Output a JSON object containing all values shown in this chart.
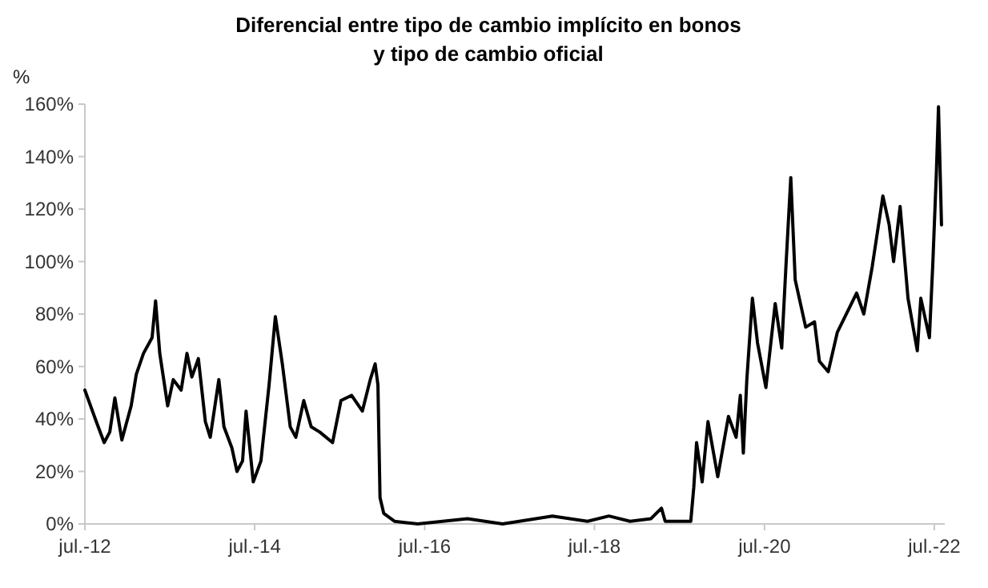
{
  "chart_data": {
    "type": "line",
    "title": "Diferencial entre tipo de cambio implícito en bonos\ny tipo de cambio oficial",
    "ylabel": "%",
    "x": [
      "2012-07-01",
      "2012-08-19",
      "2012-09-22",
      "2012-10-16",
      "2012-11-07",
      "2012-12-07",
      "2013-01-16",
      "2013-02-07",
      "2013-03-10",
      "2013-04-16",
      "2013-05-01",
      "2013-05-19",
      "2013-06-22",
      "2013-07-16",
      "2013-08-19",
      "2013-09-13",
      "2013-10-04",
      "2013-11-01",
      "2013-12-01",
      "2013-12-22",
      "2014-01-28",
      "2014-02-19",
      "2014-03-25",
      "2014-04-16",
      "2014-05-10",
      "2014-05-25",
      "2014-06-25",
      "2014-07-28",
      "2014-09-01",
      "2014-09-28",
      "2014-10-28",
      "2014-12-01",
      "2014-12-25",
      "2015-01-28",
      "2015-03-01",
      "2015-04-07",
      "2015-06-01",
      "2015-07-07",
      "2015-08-22",
      "2015-10-07",
      "2015-11-10",
      "2015-12-01",
      "2015-12-13",
      "2015-12-22",
      "2016-01-07",
      "2016-02-22",
      "2016-06-01",
      "2017-01-01",
      "2017-06-01",
      "2018-01-01",
      "2018-06-01",
      "2018-09-01",
      "2018-12-01",
      "2019-03-01",
      "2019-04-15",
      "2019-05-01",
      "2019-08-19",
      "2019-09-01",
      "2019-09-13",
      "2019-10-07",
      "2019-11-01",
      "2019-12-13",
      "2020-01-28",
      "2020-03-01",
      "2020-03-19",
      "2020-04-01",
      "2020-04-16",
      "2020-05-10",
      "2020-06-01",
      "2020-07-07",
      "2020-08-16",
      "2020-09-13",
      "2020-10-01",
      "2020-10-22",
      "2020-11-10",
      "2020-12-25",
      "2021-02-01",
      "2021-02-22",
      "2021-04-01",
      "2021-05-10",
      "2021-08-01",
      "2021-09-01",
      "2021-10-07",
      "2021-11-22",
      "2021-12-19",
      "2022-01-07",
      "2022-02-04",
      "2022-03-10",
      "2022-04-19",
      "2022-05-04",
      "2022-06-10",
      "2022-06-25",
      "2022-07-10",
      "2022-07-19",
      "2022-08-01"
    ],
    "series": [
      {
        "color": "#000000",
        "values": [
          51,
          39,
          31,
          35,
          48,
          32,
          45,
          57,
          65,
          71,
          85,
          65,
          45,
          55,
          51,
          65,
          56,
          63,
          39,
          33,
          55,
          37,
          29,
          20,
          24,
          43,
          16,
          24,
          53,
          79,
          61,
          37,
          33,
          47,
          37,
          35,
          31,
          47,
          49,
          43,
          55,
          61,
          53,
          10,
          4,
          1,
          0,
          2,
          0,
          3,
          1,
          3,
          1,
          2,
          6,
          1,
          1,
          14,
          31,
          16,
          39,
          18,
          41,
          33,
          49,
          27,
          55,
          86,
          69,
          52,
          84,
          67,
          98,
          132,
          93,
          75,
          77,
          62,
          58,
          73,
          88,
          80,
          98,
          125,
          114,
          100,
          121,
          86,
          66,
          86,
          71,
          100,
          134,
          159,
          114
        ]
      }
    ],
    "xlim": [
      "2012-07-01",
      "2022-08-15"
    ],
    "xticks": [
      {
        "value": "2012-07-01",
        "label": "jul.-12"
      },
      {
        "value": "2014-07-01",
        "label": "jul.-14"
      },
      {
        "value": "2016-07-01",
        "label": "jul.-16"
      },
      {
        "value": "2018-07-01",
        "label": "jul.-18"
      },
      {
        "value": "2020-07-01",
        "label": "jul.-20"
      },
      {
        "value": "2022-07-01",
        "label": "jul.-22"
      }
    ],
    "ylim": [
      0,
      160
    ],
    "yticks": [
      {
        "value": 0,
        "label": "0%"
      },
      {
        "value": 20,
        "label": "20%"
      },
      {
        "value": 40,
        "label": "40%"
      },
      {
        "value": 60,
        "label": "60%"
      },
      {
        "value": 80,
        "label": "80%"
      },
      {
        "value": 100,
        "label": "100%"
      },
      {
        "value": 120,
        "label": "120%"
      },
      {
        "value": 140,
        "label": "140%"
      },
      {
        "value": 160,
        "label": "160%"
      }
    ],
    "grid": false,
    "line_style": "solid",
    "marker": "none"
  }
}
